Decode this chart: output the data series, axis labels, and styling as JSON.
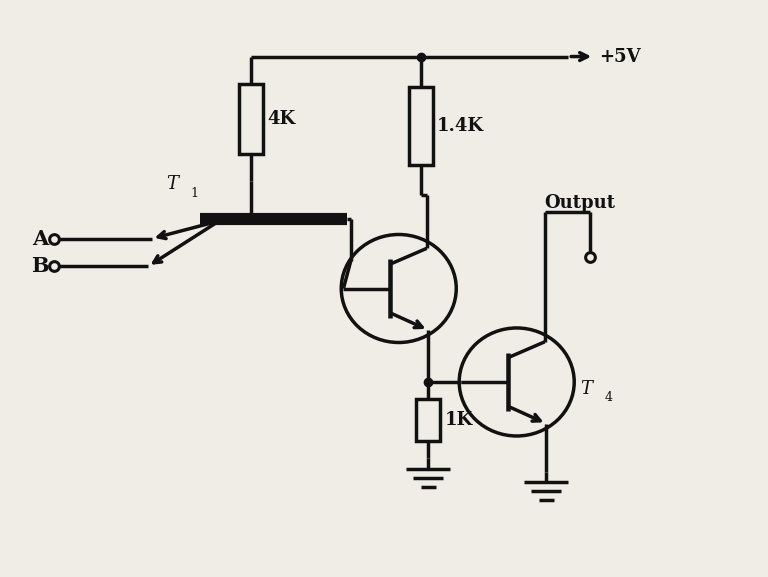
{
  "bg_color": "#f0ede6",
  "line_color": "#111111",
  "lw": 2.5,
  "vcc_label": "+5V",
  "r1_label": "4K",
  "r2_label": "1.4K",
  "r3_label": "1K",
  "t1_label": "T",
  "t1_sub": "1",
  "t4_label": "T",
  "t4_sub": "4",
  "a_label": "A",
  "b_label": "B",
  "out_label": "Output",
  "figw": 7.68,
  "figh": 5.77,
  "dpi": 100
}
